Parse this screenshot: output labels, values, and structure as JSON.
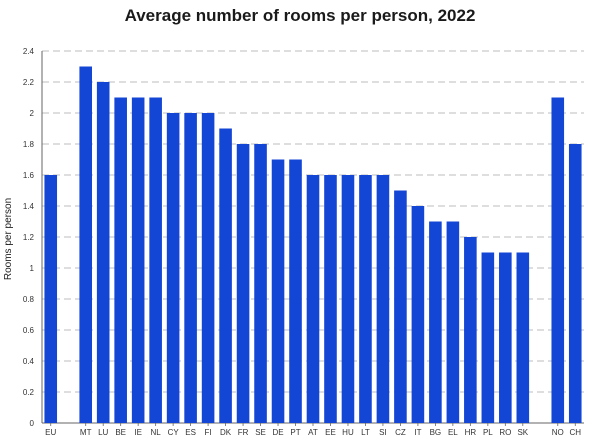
{
  "title": "Average number of rooms per person, 2022",
  "colors": {
    "bar": "#1446d6",
    "grid": "#a6a6a6",
    "axis": "#666666"
  },
  "chart_data": {
    "type": "bar",
    "title": "Average number of rooms per person, 2022",
    "xlabel": "",
    "ylabel": "Rooms per person",
    "ylim": [
      0,
      2.4
    ],
    "yticks": [
      0,
      0.2,
      0.4,
      0.6,
      0.8,
      1,
      1.2,
      1.4,
      1.6,
      1.8,
      2,
      2.2,
      2.4
    ],
    "ytick_labels": [
      "0",
      "0.2",
      "0.4",
      "0.6",
      "0.8",
      "1",
      "1.2",
      "1.4",
      "1.6",
      "1.8",
      "2",
      "2.2",
      "2.4"
    ],
    "grid": true,
    "legend": "none",
    "categories": [
      "EU",
      "",
      "MT",
      "LU",
      "BE",
      "IE",
      "NL",
      "CY",
      "ES",
      "FI",
      "DK",
      "FR",
      "SE",
      "DE",
      "PT",
      "AT",
      "EE",
      "HU",
      "LT",
      "SI",
      "CZ",
      "IT",
      "BG",
      "EL",
      "HR",
      "PL",
      "RO",
      "SK",
      "",
      "NO",
      "CH"
    ],
    "values": [
      1.6,
      null,
      2.3,
      2.2,
      2.1,
      2.1,
      2.1,
      2.0,
      2.0,
      2.0,
      1.9,
      1.8,
      1.8,
      1.7,
      1.7,
      1.6,
      1.6,
      1.6,
      1.6,
      1.6,
      1.5,
      1.4,
      1.3,
      1.3,
      1.2,
      1.1,
      1.1,
      1.1,
      null,
      2.1,
      1.8
    ]
  }
}
